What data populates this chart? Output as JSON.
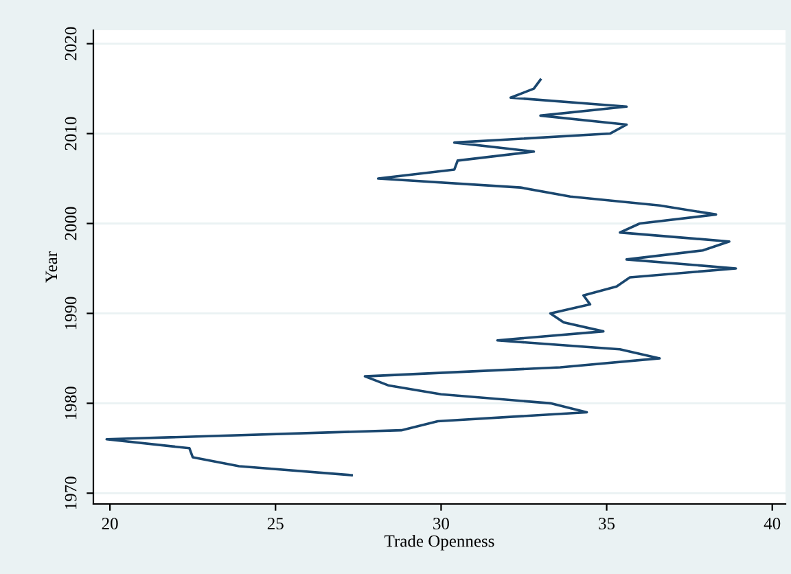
{
  "chart_data": {
    "type": "line",
    "xlabel": "Trade Openness",
    "ylabel": "Year",
    "x": [
      27.3,
      23.9,
      22.5,
      22.4,
      19.9,
      28.8,
      29.9,
      34.4,
      33.3,
      30.0,
      28.4,
      27.7,
      33.6,
      36.6,
      35.4,
      31.7,
      34.9,
      33.7,
      33.3,
      34.5,
      34.3,
      35.3,
      35.7,
      38.9,
      35.6,
      37.9,
      38.7,
      35.4,
      36.0,
      38.3,
      36.6,
      33.9,
      32.4,
      28.1,
      30.4,
      30.5,
      32.8,
      30.4,
      35.1,
      35.6,
      33.0,
      35.6,
      32.1,
      32.8,
      33.0
    ],
    "series": [
      {
        "color": "#1a476f",
        "values": [
          1972,
          1973,
          1974,
          1975,
          1976,
          1977,
          1978,
          1979,
          1980,
          1981,
          1982,
          1983,
          1984,
          1985,
          1986,
          1987,
          1988,
          1989,
          1990,
          1991,
          1992,
          1993,
          1994,
          1995,
          1996,
          1997,
          1998,
          1999,
          2000,
          2001,
          2002,
          2003,
          2004,
          2005,
          2006,
          2007,
          2008,
          2009,
          2010,
          2011,
          2012,
          2013,
          2014,
          2015,
          2016
        ]
      }
    ],
    "xlim": [
      19.5,
      40.4
    ],
    "xticks": [
      20,
      25,
      30,
      35,
      40
    ],
    "ylim": [
      1968.8,
      2021.5
    ],
    "yticks": [
      1970,
      1980,
      1990,
      2000,
      2010,
      2020
    ],
    "grid": "y",
    "marker": "none",
    "line_style": "solid",
    "legend": false
  }
}
